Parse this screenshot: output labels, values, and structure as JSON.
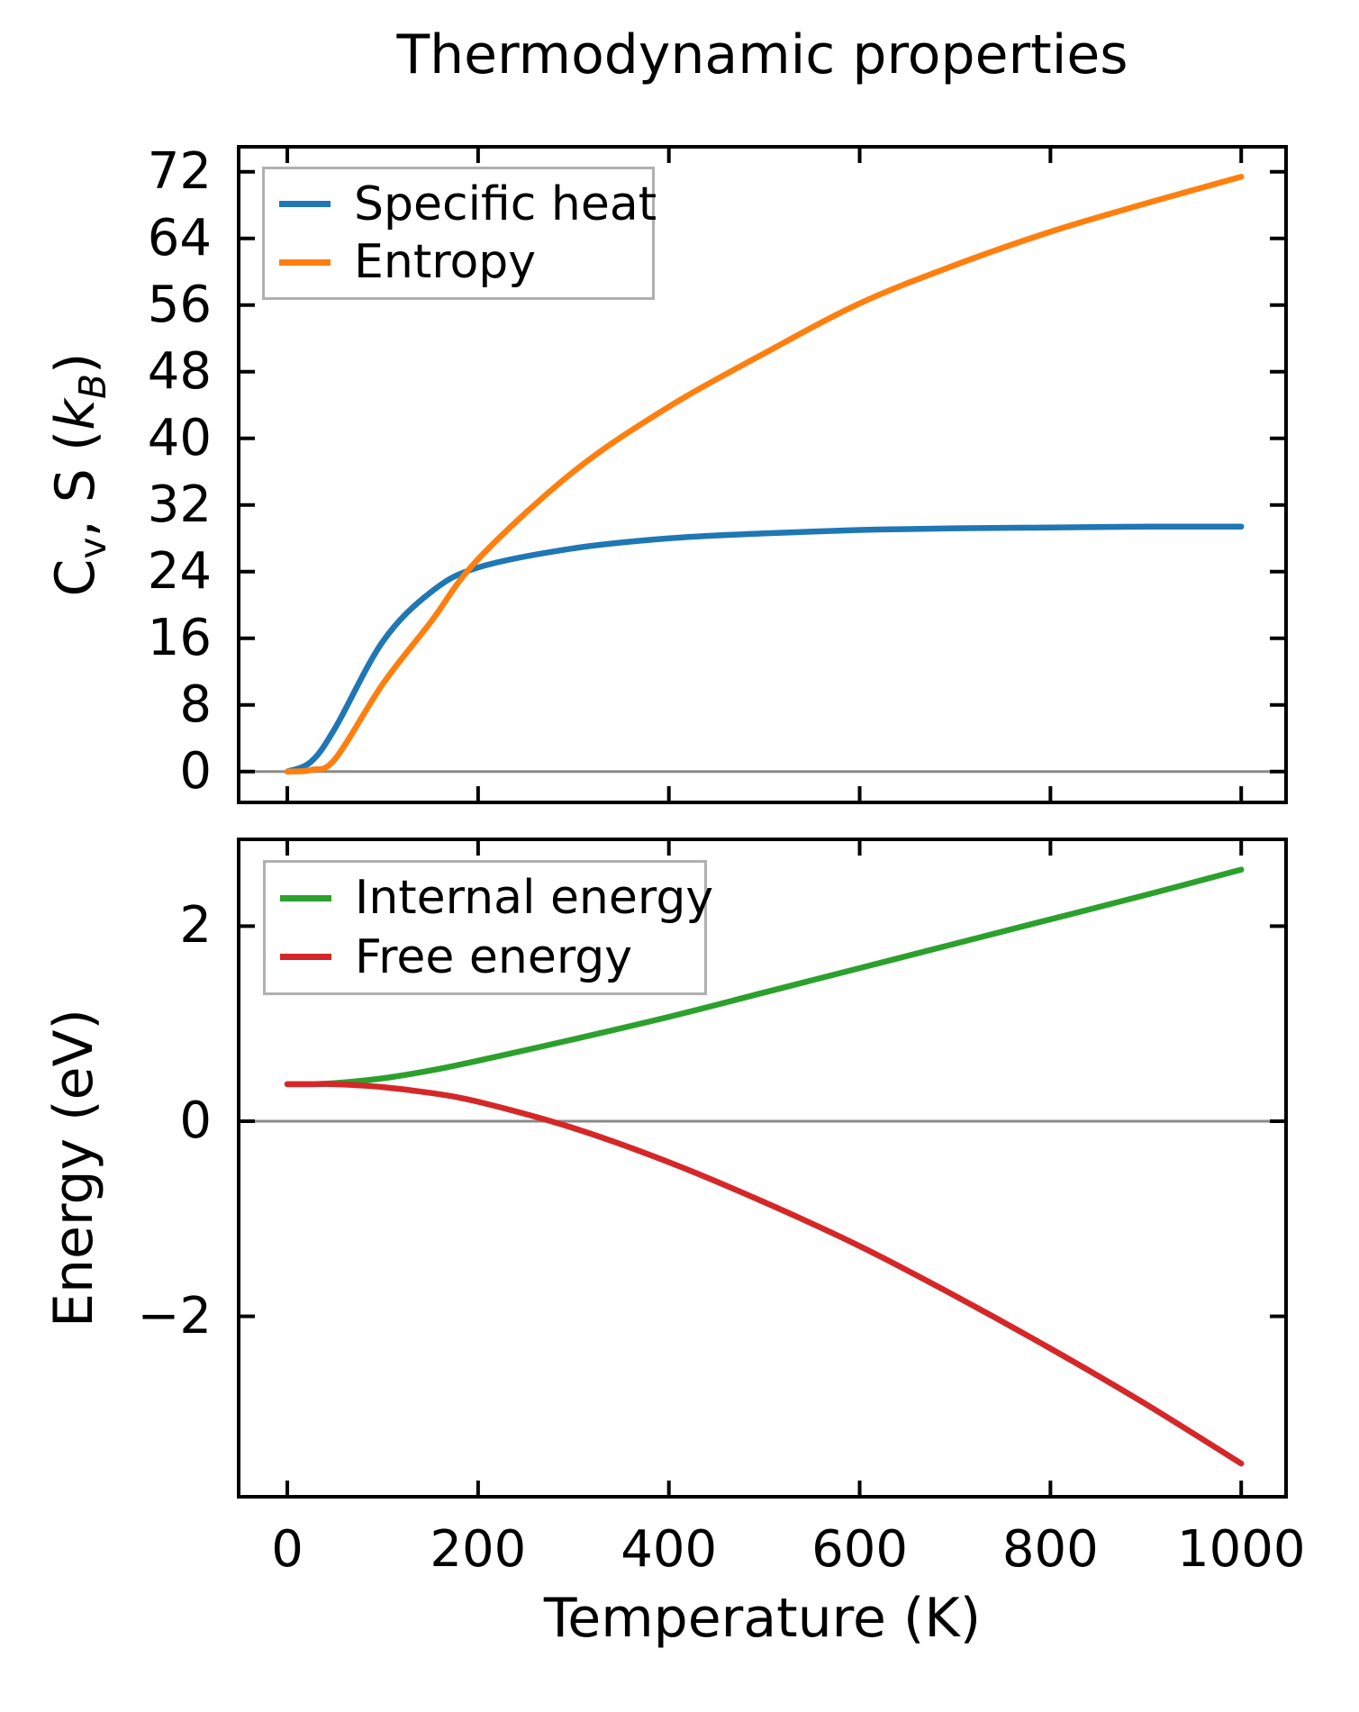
{
  "figure": {
    "title": "Thermodynamic properties",
    "background": "#ffffff",
    "spine_color": "#000000",
    "zero_line_color": "#8a8a8a",
    "legend_border_color": "#b0b0b0",
    "text_color": "#000000"
  },
  "chart_data": [
    {
      "type": "line",
      "title": "Thermodynamic properties",
      "xlabel": "",
      "ylabel": "Cv, S (kB)",
      "ylabel_parts": {
        "c": "C",
        "v": "v",
        "mid": ", S (",
        "k": "k",
        "b": "B",
        "end": ")"
      },
      "x": [
        0,
        25,
        50,
        100,
        150,
        200,
        300,
        400,
        500,
        600,
        700,
        800,
        900,
        1000
      ],
      "series": [
        {
          "name": "Specific heat",
          "color": "#1f77b4",
          "values": [
            0,
            1.2,
            5.2,
            15.6,
            21.5,
            24.5,
            26.8,
            28.0,
            28.6,
            29.0,
            29.2,
            29.3,
            29.4,
            29.4
          ]
        },
        {
          "name": "Entropy",
          "color": "#ff7f0e",
          "values": [
            0,
            0.2,
            1.5,
            10.5,
            17.9,
            25.5,
            36.0,
            43.8,
            50.2,
            56.2,
            60.8,
            64.8,
            68.2,
            71.4
          ]
        }
      ],
      "xlim": [
        -51,
        1047
      ],
      "ylim": [
        -3.7,
        75.0
      ],
      "xticks": [
        0,
        200,
        400,
        600,
        800,
        1000
      ],
      "xticklabels": [],
      "yticks": [
        0,
        8,
        16,
        24,
        32,
        40,
        48,
        56,
        64,
        72
      ],
      "yticklabels": [
        "0",
        "8",
        "16",
        "24",
        "32",
        "40",
        "48",
        "56",
        "64",
        "72"
      ],
      "grid": false,
      "zero_line": true,
      "legend_position": "upper left"
    },
    {
      "type": "line",
      "title": "",
      "xlabel": "Temperature (K)",
      "ylabel": "Energy (eV)",
      "x": [
        0,
        25,
        50,
        100,
        150,
        200,
        300,
        400,
        500,
        600,
        700,
        800,
        900,
        1000
      ],
      "series": [
        {
          "name": "Internal energy",
          "color": "#2ca02c",
          "values": [
            0.38,
            0.38,
            0.39,
            0.44,
            0.52,
            0.62,
            0.84,
            1.07,
            1.32,
            1.57,
            1.82,
            2.07,
            2.32,
            2.58
          ]
        },
        {
          "name": "Free energy",
          "color": "#d62728",
          "values": [
            0.38,
            0.38,
            0.38,
            0.35,
            0.29,
            0.2,
            -0.07,
            -0.42,
            -0.83,
            -1.28,
            -1.79,
            -2.33,
            -2.9,
            -3.51
          ]
        }
      ],
      "xlim": [
        -51,
        1047
      ],
      "ylim": [
        -3.85,
        2.89
      ],
      "xticks": [
        0,
        200,
        400,
        600,
        800,
        1000
      ],
      "xticklabels": [
        "0",
        "200",
        "400",
        "600",
        "800",
        "1000"
      ],
      "yticks": [
        -2,
        0,
        2
      ],
      "yticklabels": [
        "−2",
        "0",
        "2"
      ],
      "grid": false,
      "zero_line": true,
      "legend_position": "upper left"
    }
  ]
}
